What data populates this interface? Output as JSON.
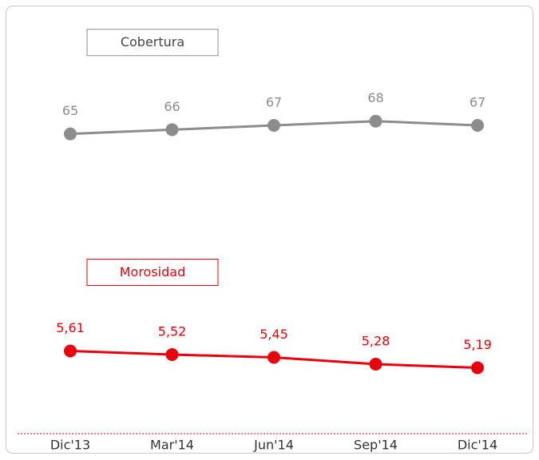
{
  "chart_data": {
    "type": "line",
    "categories": [
      "Dic'13",
      "Mar'14",
      "Jun'14",
      "Sep'14",
      "Dic'14"
    ],
    "series": [
      {
        "name": "Cobertura",
        "color": "#8c8c8c",
        "values": [
          65,
          66,
          67,
          68,
          67
        ]
      },
      {
        "name": "Morosidad",
        "color": "#e8000d",
        "axis": "y2",
        "values": [
          5.61,
          5.52,
          5.45,
          5.28,
          5.19
        ],
        "value_labels": [
          "5,61",
          "5,52",
          "5,45",
          "5,28",
          "5,19"
        ]
      }
    ],
    "ylim": [
      -5,
      89
    ],
    "y2lim": [
      3.6,
      13.6
    ]
  }
}
